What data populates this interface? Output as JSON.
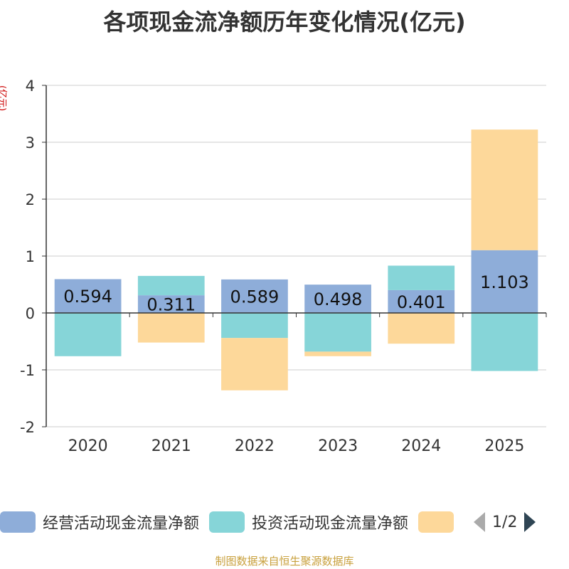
{
  "chart_data": {
    "type": "bar",
    "stacked": true,
    "title": "各项现金流净额历年变化情况(亿元)",
    "ylabel": "(亿元)",
    "categories": [
      "2020",
      "2021",
      "2022",
      "2023",
      "2024",
      "2025"
    ],
    "ylim": [
      -2,
      4
    ],
    "yticks": [
      -2,
      -1,
      0,
      1,
      2,
      3,
      4
    ],
    "grid": true,
    "series": [
      {
        "name": "经营活动现金流量净额",
        "color": "#8eadd9",
        "values": [
          0.594,
          0.311,
          0.589,
          0.498,
          0.401,
          1.103
        ],
        "labels": [
          "0.594",
          "0.311",
          "0.589",
          "0.498",
          "0.401",
          "1.103"
        ]
      },
      {
        "name": "投资活动现金流量净额",
        "color": "#86d5d8",
        "values": [
          -0.76,
          0.34,
          -0.44,
          -0.68,
          0.43,
          -1.02
        ]
      },
      {
        "name": "",
        "color": "#fdd89a",
        "values": [
          0,
          -0.52,
          -0.92,
          -0.08,
          -0.54,
          2.12
        ]
      }
    ],
    "legend_position": "bottom",
    "pager": "1/2"
  },
  "source": "制图数据来自恒生聚源数据库"
}
